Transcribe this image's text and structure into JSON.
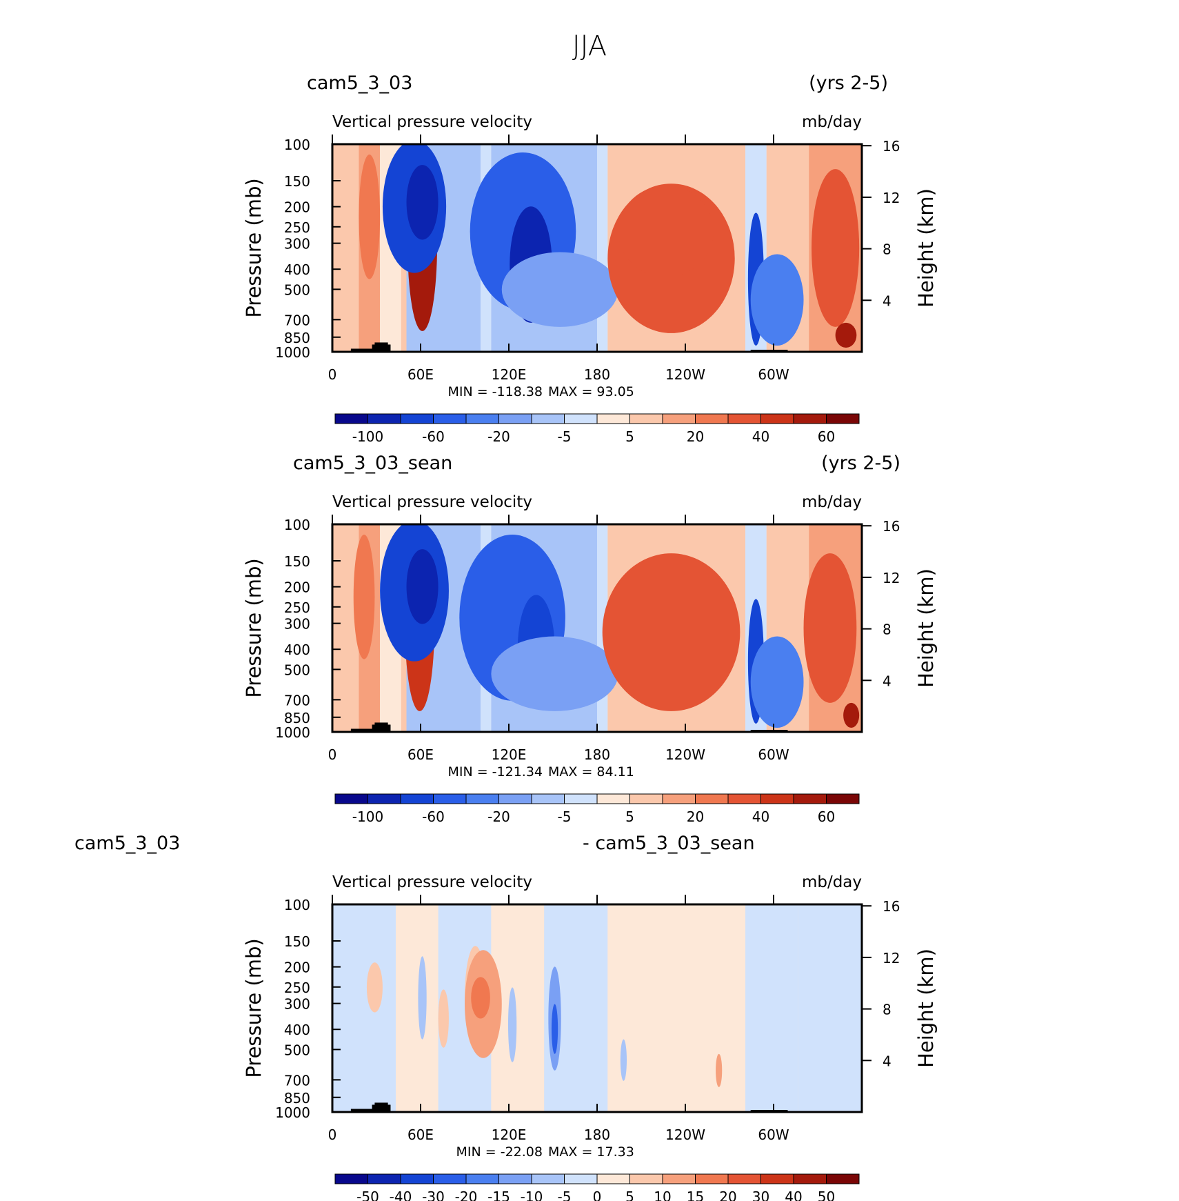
{
  "figure": {
    "title": "JJA"
  },
  "chart_data": [
    {
      "type": "heatmap",
      "case_name": "cam5_3_03",
      "years": "(yrs 2-5)",
      "variable": "Vertical pressure velocity",
      "units": "mb/day",
      "ylabel_left": "Pressure (mb)",
      "ylabel_right": "Height (km)",
      "pressure_ticks": [
        "100",
        "150",
        "200",
        "250",
        "300",
        "400",
        "500",
        "700",
        "850",
        "1000"
      ],
      "height_ticks": [
        "16",
        "12",
        "8",
        "4"
      ],
      "longitude_ticks": [
        "0",
        "60E",
        "120E",
        "180",
        "120W",
        "60W"
      ],
      "min_label": "MIN = -118.38",
      "max_label": "MAX = 93.05",
      "min": -118.38,
      "max": 93.05,
      "colorbar": {
        "levels": [
          "-100",
          "-60",
          "-20",
          "-5",
          "5",
          "20",
          "40",
          "60"
        ],
        "colors": [
          "#08088c",
          "#0c24b0",
          "#1444d4",
          "#2a5ee8",
          "#4a7ff0",
          "#7aa0f4",
          "#a8c4f8",
          "#d0e2fc",
          "#fde8d8",
          "#fbc8ac",
          "#f6a07c",
          "#f07850",
          "#e45434",
          "#cc3418",
          "#a41a0c",
          "#7a0606"
        ]
      }
    },
    {
      "type": "heatmap",
      "case_name": "cam5_3_03_sean",
      "years": "(yrs 2-5)",
      "variable": "Vertical pressure velocity",
      "units": "mb/day",
      "ylabel_left": "Pressure (mb)",
      "ylabel_right": "Height (km)",
      "pressure_ticks": [
        "100",
        "150",
        "200",
        "250",
        "300",
        "400",
        "500",
        "700",
        "850",
        "1000"
      ],
      "height_ticks": [
        "16",
        "12",
        "8",
        "4"
      ],
      "longitude_ticks": [
        "0",
        "60E",
        "120E",
        "180",
        "120W",
        "60W"
      ],
      "min_label": "MIN = -121.34",
      "max_label": "MAX = 84.11",
      "min": -121.34,
      "max": 84.11,
      "colorbar": {
        "levels": [
          "-100",
          "-60",
          "-20",
          "-5",
          "5",
          "20",
          "40",
          "60"
        ],
        "colors": [
          "#08088c",
          "#0c24b0",
          "#1444d4",
          "#2a5ee8",
          "#4a7ff0",
          "#7aa0f4",
          "#a8c4f8",
          "#d0e2fc",
          "#fde8d8",
          "#fbc8ac",
          "#f6a07c",
          "#f07850",
          "#e45434",
          "#cc3418",
          "#a41a0c",
          "#7a0606"
        ]
      }
    },
    {
      "type": "heatmap",
      "case_name": "cam5_3_03",
      "diff_label": "- cam5_3_03_sean",
      "variable": "Vertical pressure velocity",
      "units": "mb/day",
      "ylabel_left": "Pressure (mb)",
      "ylabel_right": "Height (km)",
      "pressure_ticks": [
        "100",
        "150",
        "200",
        "250",
        "300",
        "400",
        "500",
        "700",
        "850",
        "1000"
      ],
      "height_ticks": [
        "16",
        "12",
        "8",
        "4"
      ],
      "longitude_ticks": [
        "0",
        "60E",
        "120E",
        "180",
        "120W",
        "60W"
      ],
      "min_label": "MIN = -22.08",
      "max_label": "MAX = 17.33",
      "min": -22.08,
      "max": 17.33,
      "colorbar": {
        "levels": [
          "-50",
          "-40",
          "-30",
          "-20",
          "-15",
          "-10",
          "-5",
          "0",
          "5",
          "10",
          "15",
          "20",
          "30",
          "40",
          "50"
        ],
        "colors": [
          "#08088c",
          "#0c24b0",
          "#1444d4",
          "#2a5ee8",
          "#4a7ff0",
          "#7aa0f4",
          "#a8c4f8",
          "#d0e2fc",
          "#fde8d8",
          "#fbc8ac",
          "#f6a07c",
          "#f07850",
          "#e45434",
          "#cc3418",
          "#a41a0c",
          "#7a0606"
        ]
      }
    }
  ]
}
